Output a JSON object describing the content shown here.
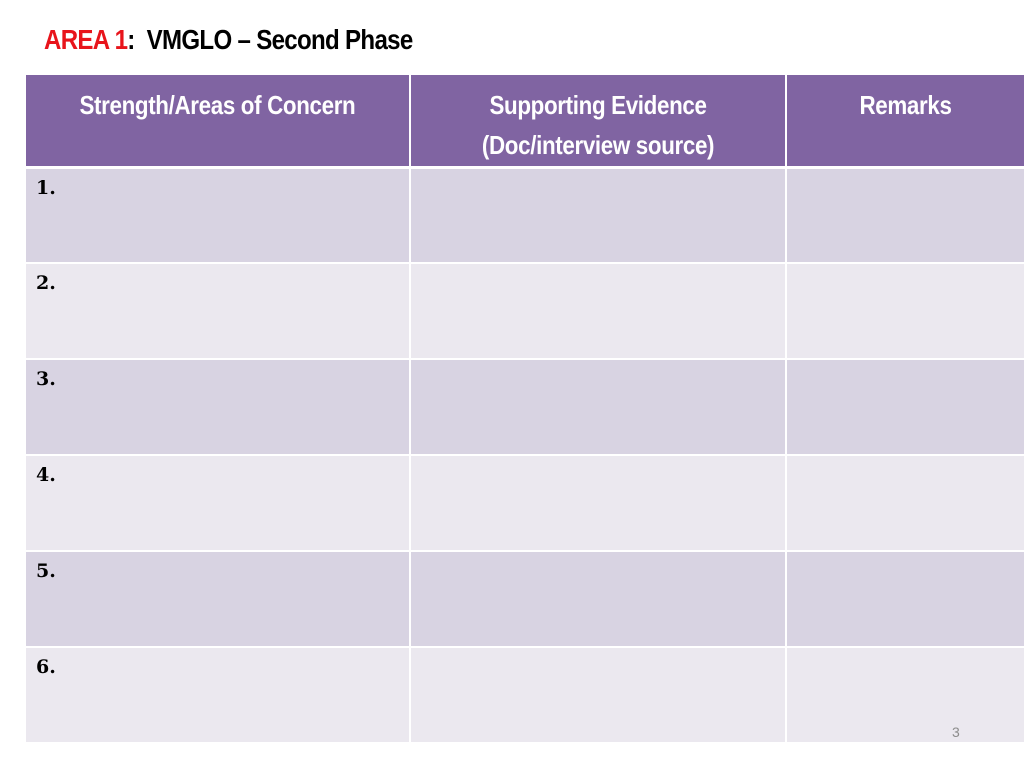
{
  "slide": {
    "title": {
      "area": "AREA 1",
      "separator": ":",
      "subject": "VMGLO – Second Phase"
    },
    "table": {
      "headers": [
        {
          "line1": "Strength/Areas of Concern",
          "line2": ""
        },
        {
          "line1": "Supporting Evidence",
          "line2": "(Doc/interview source)"
        },
        {
          "line1": "Remarks",
          "line2": ""
        }
      ],
      "rows": [
        {
          "number": "1.",
          "evidence": "",
          "remarks": ""
        },
        {
          "number": "2.",
          "evidence": "",
          "remarks": ""
        },
        {
          "number": "3.",
          "evidence": "",
          "remarks": ""
        },
        {
          "number": "4.",
          "evidence": "",
          "remarks": ""
        },
        {
          "number": "5.",
          "evidence": "",
          "remarks": ""
        },
        {
          "number": "6.",
          "evidence": "",
          "remarks": ""
        }
      ]
    },
    "page_number": "3",
    "colors": {
      "area_label": "#e8141b",
      "header_fill": "#8064a2",
      "row_odd_fill": "#d8d3e2",
      "row_even_fill": "#ebe8ef",
      "page_number": "#8c8c8c"
    }
  }
}
